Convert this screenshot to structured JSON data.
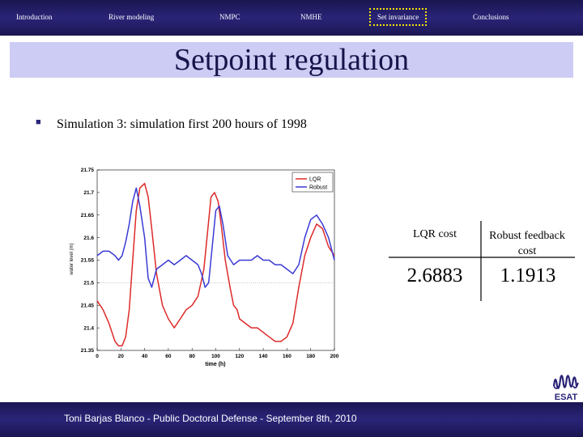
{
  "nav": {
    "items": [
      {
        "label": "Introduction"
      },
      {
        "label": "River modeling"
      },
      {
        "label": "NMPC"
      },
      {
        "label": "NMHE"
      },
      {
        "label": "Set invariance"
      },
      {
        "label": "Conclusions"
      }
    ],
    "active_index": 4
  },
  "slide": {
    "title": "Setpoint regulation",
    "bullet": "Simulation 3: simulation first 200 hours of 1998"
  },
  "chart_data": {
    "type": "line",
    "xlabel": "time (h)",
    "ylabel": "water level (m)",
    "xlim": [
      0,
      200
    ],
    "ylim": [
      21.35,
      21.75
    ],
    "x_ticks": [
      "0",
      "20",
      "40",
      "60",
      "80",
      "100",
      "120",
      "140",
      "160",
      "180",
      "200"
    ],
    "y_ticks": [
      "21.75",
      "21.7",
      "21.65",
      "21.6",
      "21.55",
      "21.5",
      "21.45",
      "21.4",
      "21.35"
    ],
    "setpoint": 21.5,
    "legend_position": "top-right",
    "series": [
      {
        "name": "LQR",
        "color": "#dd2a2a",
        "x": [
          0,
          5,
          10,
          15,
          18,
          21,
          24,
          27,
          30,
          33,
          36,
          40,
          43,
          46,
          50,
          55,
          60,
          65,
          70,
          75,
          80,
          85,
          90,
          93,
          96,
          99,
          102,
          105,
          108,
          112,
          115,
          118,
          120,
          125,
          130,
          135,
          140,
          145,
          150,
          155,
          160,
          165,
          170,
          175,
          180,
          185,
          190,
          195,
          200
        ],
        "y": [
          21.46,
          21.44,
          21.41,
          21.37,
          21.36,
          21.36,
          21.38,
          21.44,
          21.55,
          21.66,
          21.71,
          21.72,
          21.69,
          21.62,
          21.52,
          21.45,
          21.42,
          21.4,
          21.42,
          21.44,
          21.45,
          21.47,
          21.53,
          21.61,
          21.69,
          21.7,
          21.68,
          21.62,
          21.55,
          21.49,
          21.45,
          21.44,
          21.42,
          21.41,
          21.4,
          21.4,
          21.39,
          21.38,
          21.37,
          21.37,
          21.38,
          21.41,
          21.49,
          21.56,
          21.6,
          21.63,
          21.62,
          21.58,
          21.56
        ]
      },
      {
        "name": "Robust",
        "color": "#3a3ad4",
        "x": [
          0,
          5,
          10,
          15,
          18,
          21,
          24,
          27,
          30,
          33,
          36,
          40,
          43,
          46,
          50,
          55,
          60,
          65,
          70,
          75,
          80,
          85,
          88,
          91,
          94,
          97,
          100,
          103,
          106,
          110,
          115,
          120,
          125,
          130,
          135,
          140,
          145,
          150,
          155,
          160,
          165,
          170,
          175,
          180,
          185,
          190,
          195,
          200
        ],
        "y": [
          21.56,
          21.57,
          21.57,
          21.56,
          21.55,
          21.56,
          21.59,
          21.63,
          21.68,
          21.71,
          21.67,
          21.6,
          21.51,
          21.49,
          21.53,
          21.54,
          21.55,
          21.54,
          21.55,
          21.56,
          21.55,
          21.54,
          21.52,
          21.49,
          21.5,
          21.58,
          21.66,
          21.67,
          21.63,
          21.56,
          21.54,
          21.55,
          21.55,
          21.55,
          21.56,
          21.55,
          21.55,
          21.54,
          21.54,
          21.53,
          21.52,
          21.54,
          21.6,
          21.64,
          21.65,
          21.63,
          21.6,
          21.55
        ]
      }
    ]
  },
  "cost_table": {
    "headers": [
      "LQR cost",
      "Robust feedback cost"
    ],
    "values": [
      "2.6883",
      "1.1913"
    ]
  },
  "footer": {
    "text": "Toni Barjas Blanco - Public Doctoral Defense - September 8th, 2010"
  },
  "logo": {
    "text": "ESAT"
  },
  "colors": {
    "navy": "#1a1650",
    "title_band": "#ccccf4",
    "active_border": "#f5e400"
  }
}
